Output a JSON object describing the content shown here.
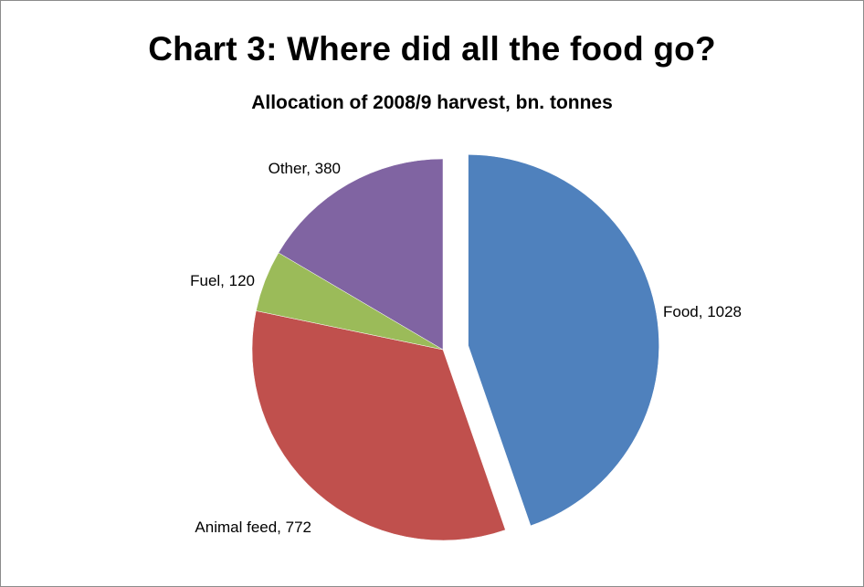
{
  "chart_data": {
    "type": "pie",
    "title": "Chart 3: Where did all the food go?",
    "subtitle": "Allocation of 2008/9 harvest, bn. tonnes",
    "slices": [
      {
        "name": "Food",
        "value": 1028,
        "label": "Food, 1028",
        "color": "#4F81BD",
        "exploded": true
      },
      {
        "name": "Animal feed",
        "value": 772,
        "label": "Animal feed, 772",
        "color": "#C0504D",
        "exploded": false
      },
      {
        "name": "Fuel",
        "value": 120,
        "label": "Fuel, 120",
        "color": "#9BBB59",
        "exploded": false
      },
      {
        "name": "Other",
        "value": 380,
        "label": "Other, 380",
        "color": "#8064A2",
        "exploded": false
      }
    ],
    "start_angle_deg": 0,
    "direction": "clockwise",
    "legend": "none"
  }
}
